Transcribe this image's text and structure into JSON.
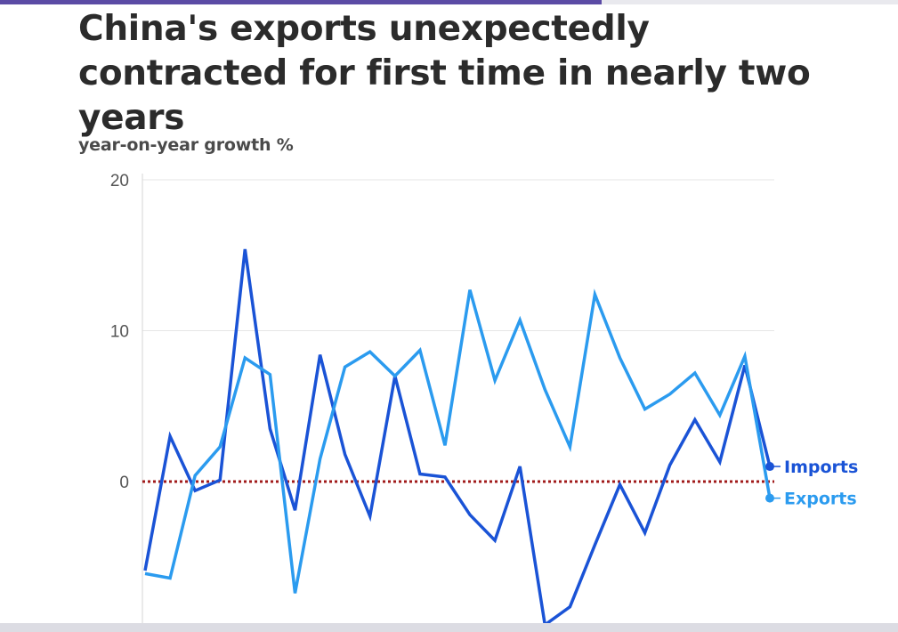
{
  "header": {
    "title": "China's exports unexpectedly contracted for first time in nearly two years"
  },
  "chart_data": {
    "type": "line",
    "title": "China's exports unexpectedly contracted for first time in nearly two years",
    "ylabel": "year-on-year growth %",
    "xlabel": "",
    "ylim": [
      -9,
      20
    ],
    "yticks": [
      0,
      10,
      20
    ],
    "grid": true,
    "legend": "end-of-line labels, right",
    "reference_line": {
      "y": 0,
      "style": "dotted",
      "color": "#a11b1b"
    },
    "series": [
      {
        "name": "Imports",
        "color": "#1a53d6",
        "values": [
          -5.9,
          3.0,
          -0.6,
          0.1,
          15.4,
          3.5,
          -1.9,
          8.4,
          1.8,
          -2.3,
          7.0,
          0.5,
          0.3,
          -2.2,
          -3.9,
          1.0,
          -9.5,
          -8.3,
          -4.2,
          -0.2,
          -3.4,
          1.1,
          4.1,
          1.3,
          7.7,
          1.0
        ]
      },
      {
        "name": "Exports",
        "color": "#2b9bef",
        "values": [
          -6.1,
          -6.4,
          0.4,
          2.3,
          8.2,
          7.1,
          -7.4,
          1.5,
          7.6,
          8.6,
          7.0,
          8.7,
          2.4,
          12.7,
          6.7,
          10.7,
          6.1,
          2.3,
          12.4,
          8.2,
          4.8,
          5.8,
          7.2,
          4.4,
          8.3,
          -1.1
        ]
      }
    ]
  }
}
